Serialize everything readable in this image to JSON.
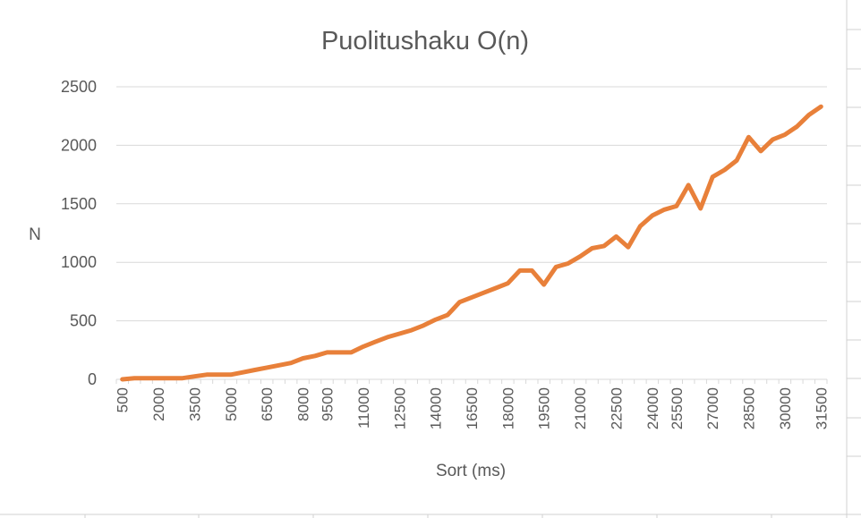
{
  "chart_data": {
    "type": "line",
    "title": "Puolitushaku O(n)",
    "xlabel": "Sort (ms)",
    "ylabel": "N",
    "ylim": [
      0,
      2500
    ],
    "yticks": [
      "0",
      "500",
      "1000",
      "1500",
      "2000",
      "2500"
    ],
    "xtick_labels": [
      "500",
      "2000",
      "3500",
      "5000",
      "6500",
      "8000",
      "9500",
      "11000",
      "12500",
      "14000",
      "16500",
      "18000",
      "19500",
      "21000",
      "22500",
      "24000",
      "25500",
      "27000",
      "28500",
      "30000",
      "31500"
    ],
    "grid": true,
    "legend": "none",
    "series": [
      {
        "color": "#E8803A",
        "values": [
          0,
          10,
          10,
          10,
          10,
          10,
          25,
          40,
          40,
          40,
          60,
          80,
          100,
          120,
          140,
          180,
          200,
          230,
          230,
          230,
          280,
          320,
          360,
          390,
          420,
          460,
          510,
          550,
          660,
          700,
          740,
          780,
          820,
          930,
          930,
          810,
          960,
          990,
          1050,
          1120,
          1140,
          1220,
          1130,
          1310,
          1400,
          1450,
          1480,
          1660,
          1460,
          1730,
          1790,
          1870,
          2070,
          1950,
          2050,
          2090,
          2160,
          2260,
          2330
        ]
      }
    ]
  }
}
